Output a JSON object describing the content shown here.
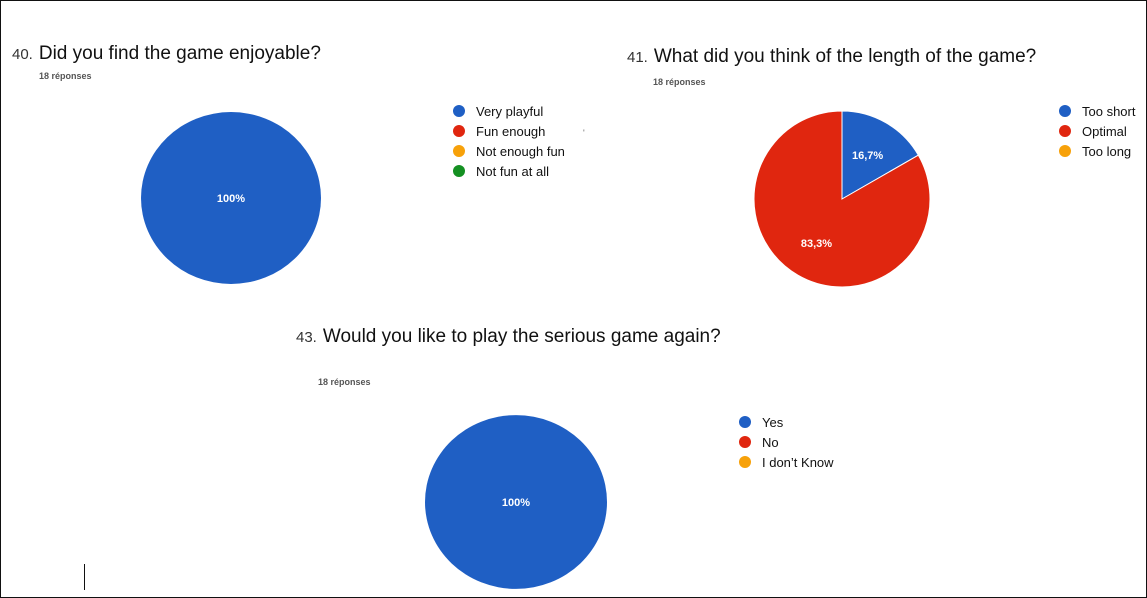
{
  "chart_data": [
    {
      "type": "pie",
      "number": "40.",
      "title": "Did you find the game enjoyable?",
      "responses": "18 réponses",
      "categories": [
        "Very playful",
        "Fun enough",
        "Not enough fun",
        "Not fun at all"
      ],
      "values": [
        100,
        0,
        0,
        0
      ],
      "colors": [
        "#1f5fc4",
        "#e0260f",
        "#f7a10a",
        "#149022"
      ],
      "slice_labels": [
        "100%",
        "",
        "",
        ""
      ],
      "legend": "right"
    },
    {
      "type": "pie",
      "number": "41.",
      "title": "What did you think of the length of the game?",
      "responses": "18 réponses",
      "categories": [
        "Too short",
        "Optimal",
        "Too long"
      ],
      "values": [
        16.7,
        83.3,
        0
      ],
      "colors": [
        "#1f5fc4",
        "#e0260f",
        "#f7a10a"
      ],
      "slice_labels": [
        "16,7%",
        "83,3%",
        ""
      ],
      "legend": "right"
    },
    {
      "type": "pie",
      "number": "43.",
      "title": "Would you like to play the serious game again?",
      "responses": "18 réponses",
      "categories": [
        "Yes",
        "No",
        "I don’t Know"
      ],
      "values": [
        100,
        0,
        0
      ],
      "colors": [
        "#1f5fc4",
        "#e0260f",
        "#f7a10a"
      ],
      "slice_labels": [
        "100%",
        "",
        ""
      ],
      "legend": "right"
    }
  ],
  "stray_mark": "'"
}
